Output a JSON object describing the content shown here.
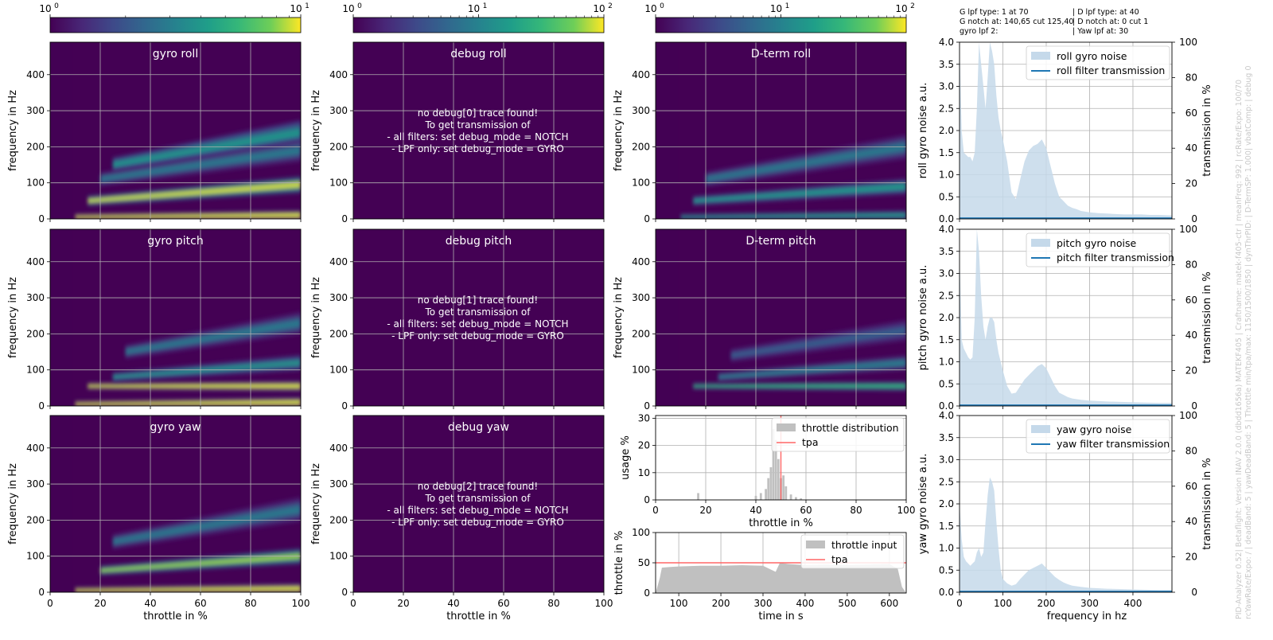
{
  "header": {
    "left_lines": [
      "G lpf type: 1 at 70",
      "G notch at: 140,65 cut 125,40",
      "gyro lpf 2:"
    ],
    "right_lines": [
      "| D lpf type:  at 40",
      "| D notch at: 0 cut 1",
      "| Yaw lpf at: 30"
    ]
  },
  "side_text": [
    "PID-Analyzer 0.52| Betaflight: Version INAV 2.0.0 (dbdd1656a) MATEKF405 | Craftname: matek-f405-ctr | meanFreq: 992 | rcRate/Expo: 100/70",
    "rcYawRate/Expo: / | deadBand: 5 | yawDeadBand: 5 | Throttle min/tpa/max: 1150/1500/1850 | dynThrPID: | D-TermSP: 1.000| vbatComp: | debug 0"
  ],
  "colorbars": [
    {
      "name": "colorbar-gyro",
      "min_label": "10",
      "min_exp": "0",
      "max_label": "10",
      "max_exp": "1",
      "decades": 1
    },
    {
      "name": "colorbar-debug",
      "min_label": "10",
      "min_exp": "0",
      "mid_label": "10",
      "mid_exp": "1",
      "max_label": "10",
      "max_exp": "2",
      "decades": 2
    },
    {
      "name": "colorbar-dterm",
      "min_label": "10",
      "min_exp": "0",
      "mid_label": "10",
      "mid_exp": "1",
      "max_label": "10",
      "max_exp": "2",
      "decades": 2
    }
  ],
  "spectrograms": {
    "ylabel": "frequency in Hz",
    "xlabel": "throttle in %",
    "yticks": [
      "0",
      "100",
      "200",
      "300",
      "400"
    ],
    "xticks": [
      "0",
      "20",
      "40",
      "60",
      "80",
      "100"
    ],
    "xlim": [
      0,
      100
    ],
    "ylim": [
      0,
      490
    ],
    "gyro": [
      "gyro roll",
      "gyro pitch",
      "gyro yaw"
    ],
    "debug": [
      "debug roll",
      "debug pitch",
      "debug yaw"
    ],
    "dterm": [
      "D-term roll",
      "D-term pitch"
    ],
    "debug_messages": [
      [
        "no debug[0] trace found!",
        "To get transmission of",
        "- all filters: set debug_mode = NOTCH",
        "- LPF only: set debug_mode = GYRO"
      ],
      [
        "no debug[1] trace found!",
        "To get transmission of",
        "- all filters: set debug_mode = NOTCH",
        "- LPF only: set debug_mode = GYRO"
      ],
      [
        "no debug[2] trace found!",
        "To get transmission of",
        "- all filters: set debug_mode = NOTCH",
        "- LPF only: set debug_mode = GYRO"
      ]
    ]
  },
  "noise": {
    "xlabel": "frequency in hz",
    "right_label": "transmission in %",
    "xticks": [
      "0",
      "100",
      "200",
      "300",
      "400"
    ],
    "yticks": [
      "0.0",
      "0.5",
      "1.0",
      "1.5",
      "2.0",
      "2.5",
      "3.0",
      "3.5",
      "4.0"
    ],
    "rticks": [
      "0",
      "20",
      "40",
      "60",
      "80",
      "100"
    ],
    "axes": [
      {
        "ylabel": "roll gyro noise a.u.",
        "legend_noise": "roll gyro noise",
        "legend_filter": "roll filter transmission"
      },
      {
        "ylabel": "pitch gyro noise a.u.",
        "legend_noise": "pitch gyro noise",
        "legend_filter": "pitch filter transmission"
      },
      {
        "ylabel": "yaw gyro noise a.u.",
        "legend_noise": "yaw gyro noise",
        "legend_filter": "yaw filter transmission"
      }
    ]
  },
  "throttle_dist": {
    "ylabel": "usage %",
    "xlabel": "throttle in %",
    "yticks": [
      "0",
      "10",
      "20",
      "30"
    ],
    "xticks": [
      "0",
      "20",
      "40",
      "60",
      "80",
      "100"
    ],
    "legend_hist": "throttle distribution",
    "legend_tpa": "tpa"
  },
  "throttle_time": {
    "ylabel": "throttle in %",
    "xlabel": "time in s",
    "yticks": [
      "0",
      "50",
      "100"
    ],
    "xticks": [
      "100",
      "200",
      "300",
      "400",
      "500",
      "600"
    ],
    "legend_fill": "throttle input",
    "legend_tpa": "tpa"
  },
  "colors": {
    "viridis_low": "#440154",
    "viridis_high": "#fde725",
    "noise_fill": "#c5d9ea",
    "transmission": "#1f77b4",
    "tpa": "#ff6666",
    "hist": "#c0c0c0"
  },
  "chart_data": [
    {
      "type": "heatmap",
      "title": "gyro roll",
      "xlabel": "throttle in %",
      "ylabel": "frequency in Hz",
      "xlim": [
        0,
        100
      ],
      "ylim": [
        0,
        490
      ],
      "colorbar": {
        "scale": "log",
        "range": [
          1,
          10
        ]
      },
      "bands": [
        {
          "freq_start": 50,
          "freq_end": 95,
          "from_throttle": 15,
          "intensity": 1.0
        },
        {
          "freq_start": 5,
          "freq_end": 10,
          "from_throttle": 10,
          "intensity": 1.0
        },
        {
          "freq_start": 150,
          "freq_end": 240,
          "from_throttle": 25,
          "intensity": 0.6
        },
        {
          "freq_start": 110,
          "freq_end": 190,
          "from_throttle": 20,
          "intensity": 0.45
        }
      ]
    },
    {
      "type": "heatmap",
      "title": "gyro pitch",
      "xlabel": "throttle in %",
      "ylabel": "frequency in Hz",
      "xlim": [
        0,
        100
      ],
      "ylim": [
        0,
        490
      ],
      "colorbar": {
        "scale": "log",
        "range": [
          1,
          10
        ]
      },
      "bands": [
        {
          "freq_start": 55,
          "freq_end": 55,
          "from_throttle": 15,
          "intensity": 1.0
        },
        {
          "freq_start": 5,
          "freq_end": 10,
          "from_throttle": 10,
          "intensity": 1.0
        },
        {
          "freq_start": 80,
          "freq_end": 120,
          "from_throttle": 25,
          "intensity": 0.55
        },
        {
          "freq_start": 150,
          "freq_end": 230,
          "from_throttle": 30,
          "intensity": 0.45
        }
      ]
    },
    {
      "type": "heatmap",
      "title": "gyro yaw",
      "xlabel": "throttle in %",
      "ylabel": "frequency in Hz",
      "xlim": [
        0,
        100
      ],
      "ylim": [
        0,
        490
      ],
      "colorbar": {
        "scale": "log",
        "range": [
          1,
          10
        ]
      },
      "bands": [
        {
          "freq_start": 60,
          "freq_end": 100,
          "from_throttle": 20,
          "intensity": 0.85
        },
        {
          "freq_start": 5,
          "freq_end": 10,
          "from_throttle": 10,
          "intensity": 1.0
        },
        {
          "freq_start": 140,
          "freq_end": 230,
          "from_throttle": 25,
          "intensity": 0.45
        }
      ]
    },
    {
      "type": "heatmap",
      "title": "D-term roll",
      "xlabel": "throttle in %",
      "ylabel": "frequency in Hz",
      "xlim": [
        0,
        100
      ],
      "ylim": [
        0,
        490
      ],
      "colorbar": {
        "scale": "log",
        "range": [
          1,
          100
        ]
      },
      "bands": [
        {
          "freq_start": 50,
          "freq_end": 90,
          "from_throttle": 15,
          "intensity": 0.6
        },
        {
          "freq_start": 110,
          "freq_end": 200,
          "from_throttle": 20,
          "intensity": 0.45
        },
        {
          "freq_start": 5,
          "freq_end": 10,
          "from_throttle": 10,
          "intensity": 0.5
        }
      ]
    },
    {
      "type": "heatmap",
      "title": "D-term pitch",
      "xlabel": "throttle in %",
      "ylabel": "frequency in Hz",
      "xlim": [
        0,
        100
      ],
      "ylim": [
        0,
        490
      ],
      "colorbar": {
        "scale": "log",
        "range": [
          1,
          100
        ]
      },
      "bands": [
        {
          "freq_start": 55,
          "freq_end": 55,
          "from_throttle": 15,
          "intensity": 0.65
        },
        {
          "freq_start": 80,
          "freq_end": 120,
          "from_throttle": 25,
          "intensity": 0.4
        },
        {
          "freq_start": 140,
          "freq_end": 210,
          "from_throttle": 30,
          "intensity": 0.35
        }
      ]
    },
    {
      "type": "area",
      "title": "roll gyro noise",
      "xlabel": "frequency in hz",
      "ylabel": "roll gyro noise a.u.",
      "xlim": [
        0,
        490
      ],
      "ylim": [
        0,
        4.0
      ],
      "x": [
        0,
        5,
        10,
        15,
        20,
        25,
        30,
        35,
        40,
        45,
        50,
        55,
        60,
        65,
        70,
        75,
        80,
        85,
        90,
        95,
        100,
        110,
        120,
        130,
        140,
        150,
        160,
        170,
        180,
        190,
        200,
        210,
        220,
        230,
        240,
        250,
        260,
        270,
        280,
        300,
        320,
        340,
        360,
        380,
        400,
        420,
        440,
        460,
        490
      ],
      "values": [
        4.0,
        2.0,
        1.5,
        1.45,
        1.4,
        1.4,
        1.3,
        1.5,
        2.5,
        4.0,
        3.5,
        3.0,
        2.5,
        3.2,
        4.0,
        3.8,
        3.5,
        2.8,
        2.3,
        2.0,
        1.8,
        1.3,
        0.6,
        0.45,
        0.9,
        1.3,
        1.55,
        1.65,
        1.7,
        1.8,
        1.6,
        1.2,
        0.8,
        0.5,
        0.4,
        0.3,
        0.25,
        0.22,
        0.18,
        0.15,
        0.13,
        0.12,
        0.11,
        0.1,
        0.1,
        0.1,
        0.09,
        0.09,
        0.08
      ],
      "transmission_percent": 0
    },
    {
      "type": "area",
      "title": "pitch gyro noise",
      "xlabel": "frequency in hz",
      "ylabel": "pitch gyro noise a.u.",
      "xlim": [
        0,
        490
      ],
      "ylim": [
        0,
        4.0
      ],
      "x": [
        0,
        5,
        10,
        15,
        20,
        25,
        30,
        35,
        40,
        45,
        50,
        55,
        60,
        65,
        70,
        75,
        80,
        85,
        90,
        95,
        100,
        110,
        120,
        130,
        140,
        150,
        160,
        170,
        180,
        190,
        200,
        210,
        220,
        230,
        240,
        250,
        260,
        280,
        300,
        340,
        380,
        420,
        460,
        490
      ],
      "values": [
        3.5,
        1.5,
        1.3,
        1.2,
        1.1,
        1.05,
        1.1,
        2.0,
        4.0,
        3.5,
        2.5,
        1.8,
        1.5,
        1.8,
        2.0,
        2.0,
        1.9,
        1.5,
        1.2,
        1.0,
        0.8,
        0.45,
        0.28,
        0.3,
        0.45,
        0.6,
        0.7,
        0.8,
        0.9,
        0.95,
        0.85,
        0.65,
        0.45,
        0.3,
        0.25,
        0.2,
        0.17,
        0.14,
        0.12,
        0.1,
        0.09,
        0.08,
        0.07,
        0.07
      ],
      "transmission_percent": 0
    },
    {
      "type": "area",
      "title": "yaw gyro noise",
      "xlabel": "frequency in hz",
      "ylabel": "yaw gyro noise a.u.",
      "xlim": [
        0,
        490
      ],
      "ylim": [
        0,
        4.0
      ],
      "x": [
        0,
        5,
        10,
        15,
        20,
        25,
        30,
        35,
        40,
        45,
        50,
        55,
        60,
        65,
        70,
        75,
        80,
        85,
        90,
        95,
        100,
        110,
        120,
        130,
        140,
        150,
        160,
        170,
        180,
        190,
        200,
        210,
        220,
        230,
        240,
        250,
        260,
        280,
        300,
        340,
        380,
        420,
        460,
        490
      ],
      "values": [
        2.0,
        1.2,
        0.8,
        0.7,
        0.65,
        0.6,
        0.65,
        0.7,
        0.9,
        1.0,
        0.8,
        0.9,
        1.6,
        2.2,
        2.6,
        2.5,
        2.3,
        1.6,
        1.0,
        0.5,
        0.3,
        0.2,
        0.15,
        0.18,
        0.3,
        0.4,
        0.5,
        0.55,
        0.6,
        0.65,
        0.55,
        0.45,
        0.35,
        0.28,
        0.22,
        0.18,
        0.15,
        0.12,
        0.1,
        0.08,
        0.07,
        0.06,
        0.05,
        0.05
      ],
      "transmission_percent": 0
    },
    {
      "type": "bar",
      "title": "throttle distribution",
      "xlabel": "throttle in %",
      "ylabel": "usage %",
      "xlim": [
        0,
        100
      ],
      "ylim": [
        0,
        31
      ],
      "x": [
        17,
        40,
        42,
        44,
        45,
        46,
        47,
        48,
        49,
        50,
        51,
        52,
        54,
        56,
        58
      ],
      "values": [
        2.5,
        1.5,
        2.5,
        4.0,
        8.0,
        12.0,
        26.0,
        22.0,
        15.0,
        8.0,
        9.0,
        5.0,
        2.0,
        1.0,
        0.6
      ],
      "tpa": 50
    },
    {
      "type": "area",
      "title": "throttle input",
      "xlabel": "time in s",
      "ylabel": "throttle in %",
      "xlim": [
        45,
        640
      ],
      "ylim": [
        0,
        100
      ],
      "x": [
        45,
        55,
        60,
        80,
        100,
        150,
        200,
        250,
        300,
        330,
        340,
        360,
        400,
        450,
        500,
        550,
        600,
        620,
        630,
        640
      ],
      "values": [
        0,
        25,
        42,
        43,
        44,
        45,
        45,
        46,
        45,
        35,
        50,
        48,
        46,
        47,
        46,
        47,
        48,
        40,
        10,
        0
      ],
      "tpa": 50
    }
  ]
}
